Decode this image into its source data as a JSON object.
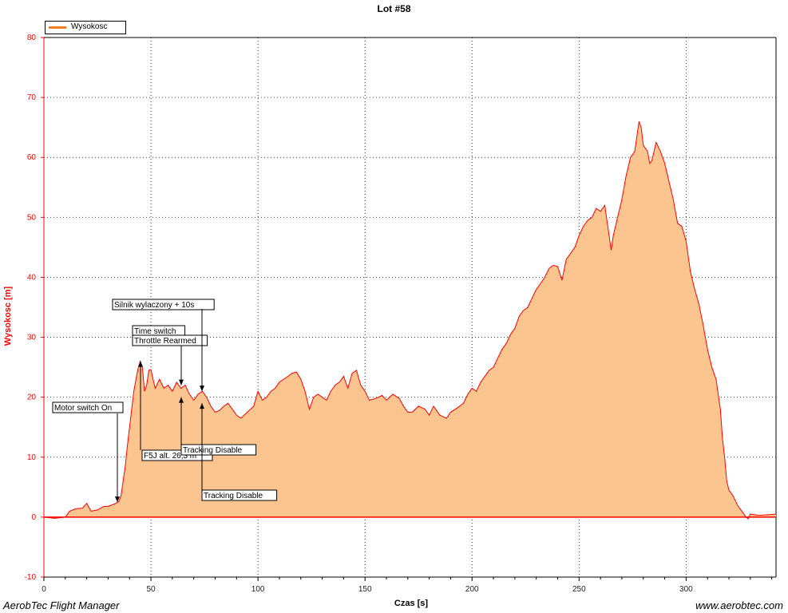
{
  "chart_data": {
    "type": "area",
    "title": "Lot #58",
    "xlabel": "Czas [s]",
    "ylabel": "Wysokosc [m]",
    "xlim": [
      0,
      342
    ],
    "ylim": [
      -10,
      80
    ],
    "x_ticks": [
      0,
      50,
      100,
      150,
      200,
      250,
      300
    ],
    "y_ticks": [
      -10,
      0,
      10,
      20,
      30,
      40,
      50,
      60,
      70,
      80
    ],
    "grid": true,
    "legend_position": "top-left",
    "series": [
      {
        "name": "Wysokosc",
        "color": "#ff0000",
        "fill": "#fcc48f",
        "points": [
          [
            0,
            0
          ],
          [
            5,
            -0.2
          ],
          [
            10,
            0
          ],
          [
            12,
            1
          ],
          [
            15,
            1.4
          ],
          [
            18,
            1.5
          ],
          [
            20,
            2.3
          ],
          [
            22,
            1
          ],
          [
            25,
            1.2
          ],
          [
            28,
            1.8
          ],
          [
            30,
            1.8
          ],
          [
            33,
            2.2
          ],
          [
            35,
            2.6
          ],
          [
            36,
            3.5
          ],
          [
            37,
            6
          ],
          [
            38,
            8.5
          ],
          [
            39,
            12
          ],
          [
            40,
            15
          ],
          [
            41,
            18
          ],
          [
            42,
            21
          ],
          [
            43,
            23
          ],
          [
            44,
            24.8
          ],
          [
            45,
            26
          ],
          [
            46,
            25
          ],
          [
            47,
            21
          ],
          [
            48,
            22
          ],
          [
            49,
            24.5
          ],
          [
            50,
            24.6
          ],
          [
            51,
            23
          ],
          [
            52,
            21.5
          ],
          [
            54,
            23
          ],
          [
            56,
            21.5
          ],
          [
            58,
            22
          ],
          [
            60,
            21
          ],
          [
            62,
            22.5
          ],
          [
            64,
            21.5
          ],
          [
            66,
            22
          ],
          [
            68,
            20.5
          ],
          [
            70,
            19.5
          ],
          [
            72,
            20.5
          ],
          [
            74,
            21
          ],
          [
            76,
            20
          ],
          [
            78,
            18.5
          ],
          [
            80,
            17.5
          ],
          [
            82,
            17.8
          ],
          [
            84,
            18.5
          ],
          [
            86,
            19
          ],
          [
            88,
            18
          ],
          [
            90,
            17
          ],
          [
            92,
            16.5
          ],
          [
            95,
            17.5
          ],
          [
            98,
            18.5
          ],
          [
            100,
            21
          ],
          [
            102,
            19.5
          ],
          [
            104,
            20
          ],
          [
            106,
            21
          ],
          [
            108,
            21.5
          ],
          [
            110,
            22.5
          ],
          [
            112,
            23
          ],
          [
            114,
            23.5
          ],
          [
            116,
            24
          ],
          [
            118,
            24.2
          ],
          [
            120,
            23
          ],
          [
            122,
            21
          ],
          [
            124,
            18
          ],
          [
            126,
            20
          ],
          [
            128,
            20.5
          ],
          [
            130,
            20
          ],
          [
            132,
            19.5
          ],
          [
            134,
            21
          ],
          [
            136,
            22
          ],
          [
            138,
            22.5
          ],
          [
            140,
            23.5
          ],
          [
            142,
            21.5
          ],
          [
            144,
            24
          ],
          [
            146,
            24.5
          ],
          [
            148,
            22
          ],
          [
            150,
            21
          ],
          [
            152,
            19.5
          ],
          [
            155,
            19.8
          ],
          [
            158,
            20.3
          ],
          [
            160,
            19.5
          ],
          [
            163,
            20.5
          ],
          [
            166,
            19.8
          ],
          [
            168,
            18.5
          ],
          [
            170,
            17.5
          ],
          [
            172,
            17.5
          ],
          [
            175,
            18.5
          ],
          [
            178,
            18
          ],
          [
            180,
            17
          ],
          [
            182,
            18.5
          ],
          [
            185,
            17
          ],
          [
            188,
            16.5
          ],
          [
            190,
            17.5
          ],
          [
            193,
            18.2
          ],
          [
            196,
            19
          ],
          [
            198,
            20.5
          ],
          [
            200,
            21.5
          ],
          [
            202,
            21
          ],
          [
            204,
            22.5
          ],
          [
            206,
            23.5
          ],
          [
            208,
            24.5
          ],
          [
            210,
            25
          ],
          [
            212,
            26.5
          ],
          [
            214,
            28
          ],
          [
            216,
            29
          ],
          [
            218,
            30.5
          ],
          [
            220,
            31.5
          ],
          [
            222,
            33.5
          ],
          [
            224,
            34.5
          ],
          [
            226,
            35
          ],
          [
            228,
            36.5
          ],
          [
            230,
            38
          ],
          [
            232,
            39
          ],
          [
            234,
            40
          ],
          [
            236,
            41.5
          ],
          [
            238,
            42
          ],
          [
            240,
            41.8
          ],
          [
            242,
            39.5
          ],
          [
            244,
            43
          ],
          [
            246,
            44
          ],
          [
            248,
            45
          ],
          [
            250,
            47
          ],
          [
            252,
            48.5
          ],
          [
            254,
            49.5
          ],
          [
            256,
            50
          ],
          [
            258,
            51.5
          ],
          [
            260,
            51
          ],
          [
            262,
            52
          ],
          [
            264,
            47
          ],
          [
            265,
            44.5
          ],
          [
            266,
            47
          ],
          [
            268,
            50
          ],
          [
            270,
            53
          ],
          [
            272,
            57
          ],
          [
            274,
            60
          ],
          [
            276,
            61
          ],
          [
            278,
            66
          ],
          [
            279,
            65
          ],
          [
            280,
            62
          ],
          [
            282,
            61
          ],
          [
            283,
            59
          ],
          [
            284,
            59.5
          ],
          [
            285,
            61
          ],
          [
            286,
            62.5
          ],
          [
            288,
            61
          ],
          [
            290,
            59
          ],
          [
            292,
            56
          ],
          [
            294,
            53
          ],
          [
            296,
            49
          ],
          [
            298,
            48.5
          ],
          [
            300,
            46
          ],
          [
            302,
            41
          ],
          [
            304,
            38
          ],
          [
            306,
            35.5
          ],
          [
            308,
            32
          ],
          [
            310,
            28
          ],
          [
            312,
            25
          ],
          [
            314,
            23
          ],
          [
            316,
            18
          ],
          [
            317,
            13
          ],
          [
            318,
            10
          ],
          [
            319,
            6
          ],
          [
            320,
            4.5
          ],
          [
            322,
            3.5
          ],
          [
            324,
            2
          ],
          [
            326,
            1
          ],
          [
            328,
            0
          ],
          [
            329,
            -0.3
          ],
          [
            330,
            0.5
          ],
          [
            334,
            0.3
          ],
          [
            338,
            0.4
          ],
          [
            342,
            0.5
          ]
        ]
      }
    ],
    "annotations": [
      {
        "text": "Motor switch On",
        "x": 34.5,
        "y": 2.5
      },
      {
        "text": "F5J alt. 26,3 m",
        "x": 46,
        "y": 26
      },
      {
        "text": "Time switch",
        "x": 64,
        "y": 22
      },
      {
        "text": "Throttle Rearmed",
        "x": 64,
        "y": 20
      },
      {
        "text": "Silnik wylaczony + 10s",
        "x": 74,
        "y": 21
      },
      {
        "text": "Tracking Disable",
        "x": 64,
        "y": 20
      },
      {
        "text": "Tracking Disable",
        "x": 74,
        "y": 19
      }
    ]
  },
  "footer": {
    "left": "AerobTec Flight Manager",
    "right": "www.aerobtec.com"
  }
}
